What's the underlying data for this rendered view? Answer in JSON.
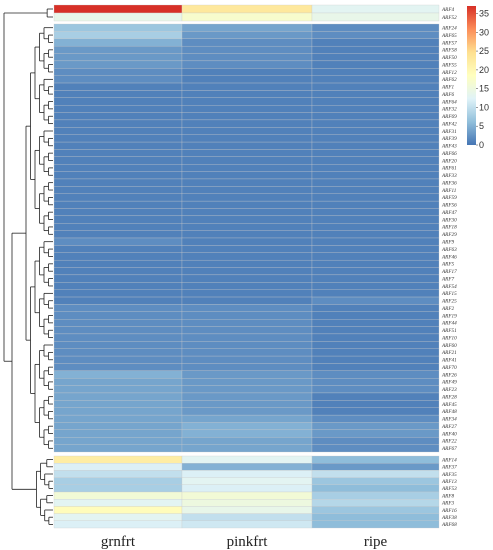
{
  "chart_data": {
    "type": "heatmap",
    "title": "",
    "xlabel": "",
    "ylabel": "",
    "columns": [
      "grnfrt",
      "pinkfrt",
      "ripe"
    ],
    "colorbar": {
      "ticks": [
        0,
        5,
        10,
        15,
        20,
        25,
        30,
        35
      ],
      "range": [
        0,
        37
      ],
      "colors": [
        "#4575b4",
        "#91bfdb",
        "#e0f3f8",
        "#ffffbf",
        "#fee090",
        "#fc8d59",
        "#d73027"
      ]
    },
    "groups": [
      {
        "rows": [
          {
            "name": "ARF4",
            "values": [
              37,
              23,
              13
            ]
          },
          {
            "name": "ARF52",
            "values": [
              14,
              17,
              14
            ]
          }
        ]
      },
      {
        "rows": [
          {
            "name": "ARF24",
            "values": [
              7,
              4,
              2
            ]
          },
          {
            "name": "ARF65",
            "values": [
              8,
              3,
              2
            ]
          },
          {
            "name": "ARF57",
            "values": [
              5,
              2,
              1
            ]
          },
          {
            "name": "ARF58",
            "values": [
              3,
              2,
              1
            ]
          },
          {
            "name": "ARF50",
            "values": [
              3,
              2,
              1
            ]
          },
          {
            "name": "ARF55",
            "values": [
              3,
              2,
              1
            ]
          },
          {
            "name": "ARF12",
            "values": [
              2,
              1,
              1
            ]
          },
          {
            "name": "ARF62",
            "values": [
              2,
              1,
              1
            ]
          },
          {
            "name": "ARF1",
            "values": [
              1,
              1,
              1
            ]
          },
          {
            "name": "ARF6",
            "values": [
              1,
              1,
              1
            ]
          },
          {
            "name": "ARF64",
            "values": [
              1,
              1,
              1
            ]
          },
          {
            "name": "ARF32",
            "values": [
              1,
              1,
              1
            ]
          },
          {
            "name": "ARF69",
            "values": [
              1,
              1,
              1
            ]
          },
          {
            "name": "ARF42",
            "values": [
              1,
              1,
              1
            ]
          },
          {
            "name": "ARF31",
            "values": [
              1,
              1,
              1
            ]
          },
          {
            "name": "ARF39",
            "values": [
              1,
              1,
              1
            ]
          },
          {
            "name": "ARF43",
            "values": [
              1,
              1,
              1
            ]
          },
          {
            "name": "ARF66",
            "values": [
              1,
              1,
              1
            ]
          },
          {
            "name": "ARF20",
            "values": [
              1,
              1,
              1
            ]
          },
          {
            "name": "ARF61",
            "values": [
              1,
              1,
              1
            ]
          },
          {
            "name": "ARF33",
            "values": [
              1,
              1,
              1
            ]
          },
          {
            "name": "ARF36",
            "values": [
              1,
              1,
              1
            ]
          },
          {
            "name": "ARF11",
            "values": [
              1,
              1,
              1
            ]
          },
          {
            "name": "ARF59",
            "values": [
              1,
              1,
              1
            ]
          },
          {
            "name": "ARF56",
            "values": [
              1,
              1,
              1
            ]
          },
          {
            "name": "ARF47",
            "values": [
              1,
              1,
              1
            ]
          },
          {
            "name": "ARF30",
            "values": [
              1,
              1,
              1
            ]
          },
          {
            "name": "ARF18",
            "values": [
              1,
              1,
              1
            ]
          },
          {
            "name": "ARF29",
            "values": [
              1,
              1,
              1
            ]
          },
          {
            "name": "ARF9",
            "values": [
              2,
              1,
              1
            ]
          },
          {
            "name": "ARF63",
            "values": [
              1,
              1,
              1
            ]
          },
          {
            "name": "ARF46",
            "values": [
              1,
              1,
              1
            ]
          },
          {
            "name": "ARF5",
            "values": [
              1,
              1,
              1
            ]
          },
          {
            "name": "ARF17",
            "values": [
              1,
              1,
              1
            ]
          },
          {
            "name": "ARF7",
            "values": [
              1,
              1,
              1
            ]
          },
          {
            "name": "ARF54",
            "values": [
              1,
              1,
              1
            ]
          },
          {
            "name": "ARF15",
            "values": [
              1,
              1,
              1
            ]
          },
          {
            "name": "ARF25",
            "values": [
              1,
              1,
              2
            ]
          },
          {
            "name": "ARF2",
            "values": [
              2,
              2,
              1
            ]
          },
          {
            "name": "ARF19",
            "values": [
              2,
              2,
              1
            ]
          },
          {
            "name": "ARF44",
            "values": [
              2,
              2,
              1
            ]
          },
          {
            "name": "ARF51",
            "values": [
              2,
              2,
              1
            ]
          },
          {
            "name": "ARF10",
            "values": [
              2,
              2,
              1
            ]
          },
          {
            "name": "ARF60",
            "values": [
              2,
              2,
              1
            ]
          },
          {
            "name": "ARF21",
            "values": [
              2,
              2,
              1
            ]
          },
          {
            "name": "ARF41",
            "values": [
              2,
              2,
              1
            ]
          },
          {
            "name": "ARF70",
            "values": [
              2,
              2,
              1
            ]
          },
          {
            "name": "ARF26",
            "values": [
              5,
              3,
              2
            ]
          },
          {
            "name": "ARF49",
            "values": [
              4,
              3,
              2
            ]
          },
          {
            "name": "ARF23",
            "values": [
              4,
              3,
              2
            ]
          },
          {
            "name": "ARF28",
            "values": [
              4,
              3,
              1
            ]
          },
          {
            "name": "ARF45",
            "values": [
              4,
              3,
              1
            ]
          },
          {
            "name": "ARF48",
            "values": [
              4,
              3,
              1
            ]
          },
          {
            "name": "ARF34",
            "values": [
              4,
              4,
              2
            ]
          },
          {
            "name": "ARF27",
            "values": [
              4,
              5,
              3
            ]
          },
          {
            "name": "ARF40",
            "values": [
              4,
              5,
              3
            ]
          },
          {
            "name": "ARF22",
            "values": [
              4,
              4,
              2
            ]
          },
          {
            "name": "ARF67",
            "values": [
              4,
              4,
              2
            ]
          }
        ]
      },
      {
        "rows": [
          {
            "name": "ARF14",
            "values": [
              22,
              13,
              6
            ]
          },
          {
            "name": "ARF37",
            "values": [
              12,
              5,
              3
            ]
          },
          {
            "name": "ARF35",
            "values": [
              10,
              12,
              10
            ]
          },
          {
            "name": "ARF13",
            "values": [
              8,
              13,
              7
            ]
          },
          {
            "name": "ARF53",
            "values": [
              8,
              12,
              6
            ]
          },
          {
            "name": "ARF8",
            "values": [
              16,
              16,
              8
            ]
          },
          {
            "name": "ARF3",
            "values": [
              13,
              15,
              9
            ]
          },
          {
            "name": "ARF16",
            "values": [
              19,
              14,
              7
            ]
          },
          {
            "name": "ARF38",
            "values": [
              13,
              10,
              6
            ]
          },
          {
            "name": "ARF68",
            "values": [
              12,
              11,
              6
            ]
          }
        ]
      }
    ]
  }
}
